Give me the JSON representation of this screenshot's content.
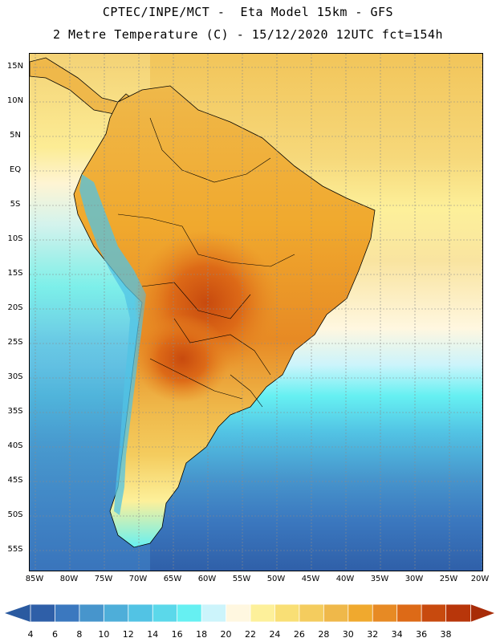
{
  "title_line1": "CPTEC/INPE/MCT -  Eta Model 15km - GFS",
  "title_line2": "2 Metre Temperature (C) - 15/12/2020 12UTC fct=154h",
  "lat_labels": [
    "15N",
    "10N",
    "5N",
    "EQ",
    "5S",
    "10S",
    "15S",
    "20S",
    "25S",
    "30S",
    "35S",
    "40S",
    "45S",
    "50S",
    "55S"
  ],
  "lon_labels": [
    "85W",
    "80W",
    "75W",
    "70W",
    "65W",
    "60W",
    "55W",
    "50W",
    "45W",
    "40W",
    "35W",
    "30W",
    "25W",
    "20W"
  ],
  "colorbar": {
    "ticks": [
      "4",
      "6",
      "8",
      "10",
      "12",
      "14",
      "16",
      "18",
      "20",
      "22",
      "24",
      "26",
      "28",
      "30",
      "32",
      "34",
      "36",
      "38"
    ],
    "colors": [
      "#2f5fa8",
      "#3b78bf",
      "#4795cc",
      "#4eaed9",
      "#52c3e4",
      "#5bd8ea",
      "#66f0f2",
      "#ccf4fb",
      "#fff7e0",
      "#fdf09a",
      "#f9df75",
      "#f4cc5e",
      "#efb84a",
      "#f0a92e",
      "#e78a24",
      "#dd6a17",
      "#c84a0e",
      "#b8360a"
    ],
    "low_color": "#2a5aa0",
    "high_color": "#a82c08"
  }
}
